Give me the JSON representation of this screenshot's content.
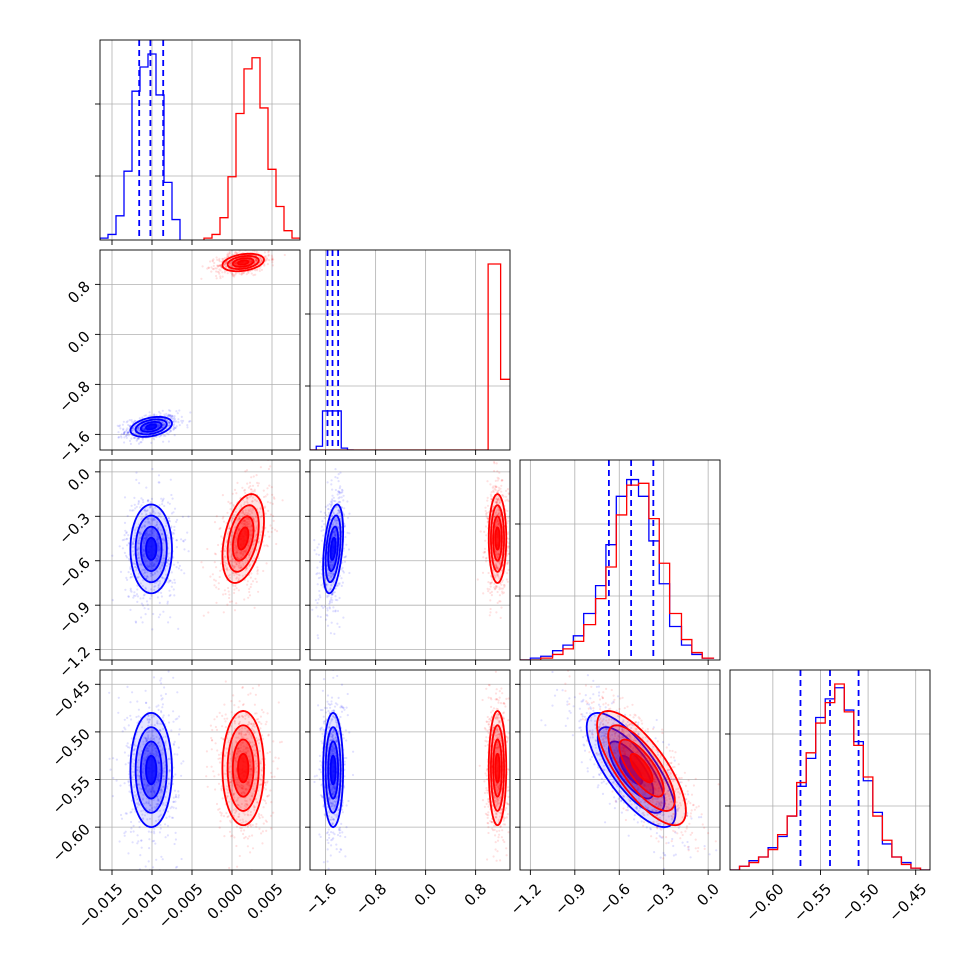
{
  "chart_data": {
    "type": "corner",
    "parameters": 4,
    "grid": true,
    "colors": {
      "blue_series": "#0000ff",
      "red_series": "#ff0000",
      "grid": "#b0b0b0"
    },
    "axes": [
      {
        "range": [
          -0.0165,
          0.0085
        ],
        "ticks": [
          -0.015,
          -0.01,
          -0.005,
          0.0,
          0.005
        ],
        "tick_labels": [
          "−0.015",
          "−0.010",
          "−0.005",
          "0.000",
          "0.005"
        ]
      },
      {
        "range": [
          -1.85,
          1.35
        ],
        "ticks": [
          -1.6,
          -0.8,
          0.0,
          0.8
        ],
        "tick_labels": [
          "−1.6",
          "−0.8",
          "0.0",
          "0.8"
        ]
      },
      {
        "range": [
          -1.27,
          0.08
        ],
        "ticks": [
          -1.2,
          -0.9,
          -0.6,
          -0.3,
          0.0
        ],
        "tick_labels": [
          "−1.2",
          "−0.9",
          "−0.6",
          "−0.3",
          "0.0"
        ]
      },
      {
        "range": [
          -0.645,
          -0.435
        ],
        "ticks": [
          -0.6,
          -0.55,
          -0.5,
          -0.45
        ],
        "tick_labels": [
          "−0.60",
          "−0.55",
          "−0.50",
          "−0.45"
        ]
      }
    ],
    "series": [
      {
        "color": "#0000ff",
        "means": [
          -0.0101,
          -1.48,
          -0.52,
          -0.54
        ],
        "sigmas": [
          0.0013,
          0.08,
          0.15,
          0.03
        ],
        "correlations": {
          "0-1": 0.35,
          "0-2": 0.0,
          "0-3": 0.0,
          "1-2": 0.4,
          "1-3": 0.0,
          "2-3": -0.75
        },
        "quantiles": [
          [
            -0.0116,
            -0.0102,
            -0.0086
          ],
          [
            -1.57,
            -1.49,
            -1.4
          ],
          [
            -0.67,
            -0.52,
            -0.37
          ],
          [
            -0.571,
            -0.54,
            -0.51
          ]
        ],
        "histograms": [
          {
            "edges": [
              -0.0165,
              -0.0155,
              -0.0145,
              -0.0135,
              -0.0125,
              -0.0115,
              -0.0105,
              -0.0095,
              -0.0085,
              -0.0075,
              -0.0065
            ],
            "counts": [
              0.01,
              0.03,
              0.13,
              0.37,
              0.8,
              0.93,
              1.0,
              0.78,
              0.31,
              0.11,
              0.0
            ]
          },
          {
            "edges": [
              -1.85,
              -1.75,
              -1.65,
              -1.55,
              -1.45,
              -1.35,
              -1.25,
              -1.15
            ],
            "counts": [
              0.0,
              0.02,
              0.21,
              0.21,
              0.21,
              0.01,
              0.0
            ]
          },
          {
            "edges": [
              -1.27,
              -1.2,
              -1.13,
              -1.05,
              -0.98,
              -0.91,
              -0.84,
              -0.76,
              -0.69,
              -0.62,
              -0.55,
              -0.47,
              -0.4,
              -0.33,
              -0.26,
              -0.18,
              -0.11,
              -0.04,
              0.04
            ],
            "counts": [
              0.0,
              0.01,
              0.02,
              0.05,
              0.08,
              0.13,
              0.25,
              0.4,
              0.62,
              0.88,
              0.97,
              0.88,
              0.64,
              0.41,
              0.18,
              0.08,
              0.03,
              0.01
            ]
          },
          {
            "edges": [
              -0.645,
              -0.635,
              -0.625,
              -0.615,
              -0.605,
              -0.595,
              -0.585,
              -0.575,
              -0.565,
              -0.555,
              -0.545,
              -0.535,
              -0.525,
              -0.515,
              -0.505,
              -0.495,
              -0.485,
              -0.475,
              -0.465,
              -0.455,
              -0.445,
              -0.435
            ],
            "counts": [
              0.0,
              0.02,
              0.05,
              0.07,
              0.12,
              0.18,
              0.29,
              0.45,
              0.6,
              0.82,
              0.92,
              0.98,
              0.86,
              0.69,
              0.48,
              0.31,
              0.14,
              0.07,
              0.04,
              0.01,
              0.0
            ]
          }
        ]
      },
      {
        "color": "#ff0000",
        "means": [
          0.0014,
          1.15,
          -0.45,
          -0.538
        ],
        "sigmas": [
          0.0013,
          0.07,
          0.15,
          0.03
        ],
        "correlations": {
          "0-1": 0.3,
          "0-2": 0.4,
          "0-3": 0.0,
          "1-2": 0.0,
          "1-3": 0.0,
          "2-3": -0.75
        },
        "quantiles": [],
        "histograms": [
          {
            "edges": [
              -0.0035,
              -0.0025,
              -0.0015,
              -0.0005,
              0.0005,
              0.0015,
              0.0025,
              0.0035,
              0.0045,
              0.0055,
              0.0065,
              0.0075,
              0.0085
            ],
            "counts": [
              0.01,
              0.03,
              0.12,
              0.34,
              0.68,
              0.92,
              0.98,
              0.71,
              0.38,
              0.18,
              0.05,
              0.01
            ]
          },
          {
            "edges": [
              -1.85,
              1.0,
              1.2,
              1.35
            ],
            "counts": [
              0.0,
              1.0,
              0.38
            ]
          },
          {
            "edges": [
              -1.27,
              -1.2,
              -1.13,
              -1.05,
              -0.98,
              -0.91,
              -0.84,
              -0.76,
              -0.69,
              -0.62,
              -0.55,
              -0.47,
              -0.4,
              -0.33,
              -0.26,
              -0.18,
              -0.11,
              -0.04,
              0.04
            ],
            "counts": [
              0.0,
              0.0,
              0.01,
              0.03,
              0.06,
              0.1,
              0.19,
              0.33,
              0.5,
              0.78,
              0.94,
              0.95,
              0.76,
              0.52,
              0.25,
              0.11,
              0.04,
              0.01
            ]
          },
          {
            "edges": [
              -0.645,
              -0.635,
              -0.625,
              -0.615,
              -0.605,
              -0.595,
              -0.585,
              -0.575,
              -0.565,
              -0.555,
              -0.545,
              -0.535,
              -0.525,
              -0.515,
              -0.505,
              -0.495,
              -0.485,
              -0.475,
              -0.465,
              -0.455,
              -0.445,
              -0.435
            ],
            "counts": [
              0.0,
              0.02,
              0.04,
              0.07,
              0.11,
              0.19,
              0.29,
              0.47,
              0.63,
              0.79,
              0.9,
              1.0,
              0.85,
              0.67,
              0.5,
              0.29,
              0.16,
              0.07,
              0.03,
              0.01,
              0.0
            ]
          }
        ]
      }
    ]
  }
}
